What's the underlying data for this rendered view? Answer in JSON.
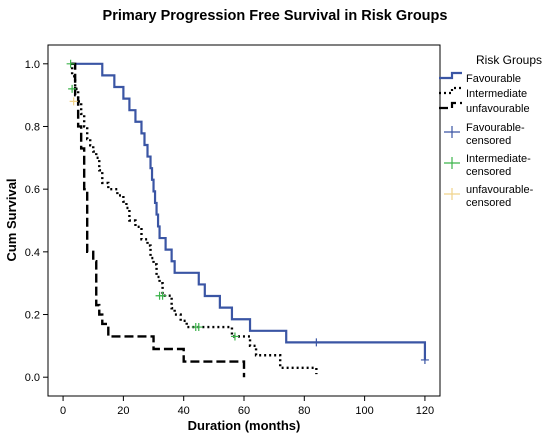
{
  "chart_data": {
    "type": "line",
    "title": "Primary Progression Free Survival in Risk Groups",
    "xlabel": "Duration (months)",
    "ylabel": "Cum Survival",
    "xlim": [
      -5,
      125
    ],
    "ylim": [
      -0.06,
      1.06
    ],
    "xticks": [
      0,
      20,
      40,
      60,
      80,
      100,
      120
    ],
    "yticks": [
      0.0,
      0.2,
      0.4,
      0.6,
      0.8,
      1.0
    ],
    "grid": false,
    "legend_title": "Risk Groups",
    "legend_position": "right",
    "series": [
      {
        "name": "Favourable",
        "color": "#3a55a4",
        "dash": "solid",
        "steps": [
          [
            2.5,
            1.0
          ],
          [
            13,
            0.963
          ],
          [
            17,
            0.926
          ],
          [
            20,
            0.889
          ],
          [
            22,
            0.852
          ],
          [
            24,
            0.815
          ],
          [
            26,
            0.778
          ],
          [
            27,
            0.741
          ],
          [
            28,
            0.704
          ],
          [
            29,
            0.667
          ],
          [
            29.5,
            0.63
          ],
          [
            30,
            0.593
          ],
          [
            30.5,
            0.556
          ],
          [
            31,
            0.519
          ],
          [
            31.5,
            0.481
          ],
          [
            32,
            0.444
          ],
          [
            34,
            0.407
          ],
          [
            36,
            0.37
          ],
          [
            37,
            0.333
          ],
          [
            45,
            0.296
          ],
          [
            47,
            0.259
          ],
          [
            52,
            0.222
          ],
          [
            56,
            0.185
          ],
          [
            62,
            0.148
          ],
          [
            74,
            0.111
          ],
          [
            120,
            0.055
          ]
        ]
      },
      {
        "name": "Intermediate",
        "color": "#000000",
        "dash": "dotted",
        "steps": [
          [
            2.5,
            1.0
          ],
          [
            3,
            0.96
          ],
          [
            4,
            0.92
          ],
          [
            5,
            0.88
          ],
          [
            6,
            0.84
          ],
          [
            7,
            0.8
          ],
          [
            8,
            0.76
          ],
          [
            9,
            0.74
          ],
          [
            10,
            0.72
          ],
          [
            11,
            0.7
          ],
          [
            12,
            0.66
          ],
          [
            13,
            0.62
          ],
          [
            15,
            0.6
          ],
          [
            18,
            0.58
          ],
          [
            20,
            0.56
          ],
          [
            21,
            0.54
          ],
          [
            22,
            0.5
          ],
          [
            24,
            0.48
          ],
          [
            26,
            0.44
          ],
          [
            28,
            0.42
          ],
          [
            29,
            0.38
          ],
          [
            30,
            0.36
          ],
          [
            31,
            0.32
          ],
          [
            32,
            0.3
          ],
          [
            33,
            0.26
          ],
          [
            36,
            0.22
          ],
          [
            37,
            0.2
          ],
          [
            39,
            0.18
          ],
          [
            41,
            0.16
          ],
          [
            56,
            0.13
          ],
          [
            62,
            0.1
          ],
          [
            64,
            0.07
          ],
          [
            72,
            0.03
          ],
          [
            84,
            0.01
          ]
        ]
      },
      {
        "name": "unfavourable",
        "color": "#000000",
        "dash": "dashed",
        "steps": [
          [
            3,
            1.0
          ],
          [
            4,
            0.9
          ],
          [
            5,
            0.8
          ],
          [
            6,
            0.73
          ],
          [
            7,
            0.6
          ],
          [
            8,
            0.4
          ],
          [
            10,
            0.37
          ],
          [
            11,
            0.23
          ],
          [
            12,
            0.2
          ],
          [
            13,
            0.17
          ],
          [
            15,
            0.13
          ],
          [
            30,
            0.09
          ],
          [
            40,
            0.05
          ],
          [
            60,
            0.0
          ]
        ]
      }
    ],
    "censored": [
      {
        "name": "Favourable-censored",
        "color": "#3a55a4",
        "points": [
          [
            84,
            0.111
          ],
          [
            120,
            0.055
          ]
        ]
      },
      {
        "name": "Intermediate-censored",
        "color": "#3cb44b",
        "points": [
          [
            2.5,
            1.0
          ],
          [
            3,
            0.92
          ],
          [
            32,
            0.26
          ],
          [
            33,
            0.26
          ],
          [
            44,
            0.16
          ],
          [
            45,
            0.16
          ],
          [
            57,
            0.13
          ]
        ]
      },
      {
        "name": "unfavourable-censored",
        "color": "#f1d38a",
        "points": [
          [
            3.5,
            0.88
          ]
        ]
      }
    ]
  }
}
